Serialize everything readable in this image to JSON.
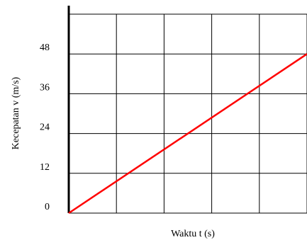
{
  "chart_data": {
    "type": "line",
    "xlabel": "Waktu t (s)",
    "ylabel": "Kecepatan v (m/s)",
    "y_ticks": [
      "0",
      "12",
      "24",
      "36",
      "48"
    ],
    "ylim": [
      0,
      60
    ],
    "xlim": [
      0,
      5
    ],
    "grid": true,
    "series": [
      {
        "x": [
          0,
          5
        ],
        "y": [
          0,
          48
        ]
      }
    ],
    "colors": {
      "line": "#ff0000",
      "grid": "#000000",
      "axis": "#000000"
    }
  }
}
